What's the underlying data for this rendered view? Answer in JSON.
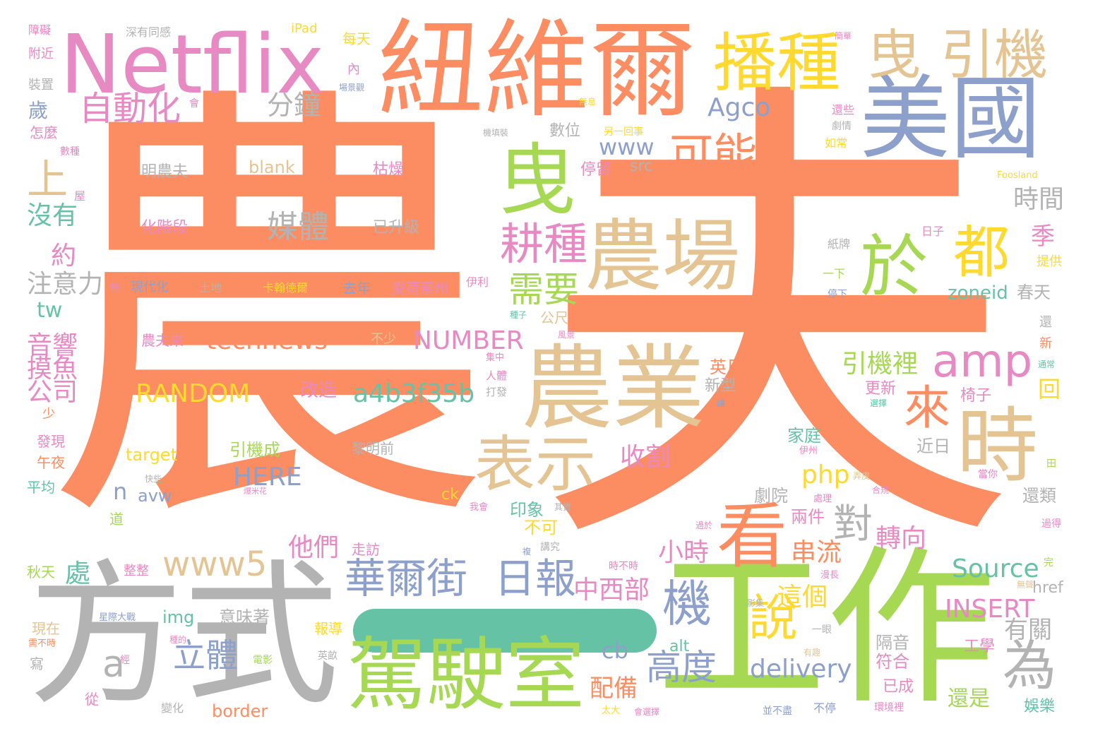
{
  "palette": {
    "orange": "#fc8d62",
    "green": "#a6d854",
    "gray": "#b3b3b3",
    "tan": "#e5c494",
    "blue": "#8da0cb",
    "pink": "#e78ac3",
    "yellow": "#ffd92f",
    "teal": "#66c2a5"
  },
  "words": [
    {
      "text": "農",
      "color": "orange"
    },
    {
      "text": "夫",
      "color": "orange"
    },
    {
      "text": "方式",
      "color": "gray"
    },
    {
      "text": "工作",
      "color": "green"
    },
    {
      "text": "紐維爾",
      "color": "orange"
    },
    {
      "text": "Netflix",
      "color": "pink"
    },
    {
      "text": "一",
      "color": "teal"
    },
    {
      "text": "駕駛室",
      "color": "green"
    },
    {
      "text": "農業",
      "color": "tan"
    },
    {
      "text": "農場",
      "color": "tan"
    },
    {
      "text": "美國",
      "color": "blue"
    },
    {
      "text": "時",
      "color": "tan"
    },
    {
      "text": "播種",
      "color": "yellow"
    },
    {
      "text": "曳",
      "color": "tan"
    },
    {
      "text": "引機",
      "color": "tan"
    },
    {
      "text": "曳",
      "color": "green"
    },
    {
      "text": "於",
      "color": "green"
    },
    {
      "text": "都",
      "color": "yellow"
    },
    {
      "text": "表示",
      "color": "tan"
    },
    {
      "text": "看",
      "color": "orange"
    },
    {
      "text": "華爾街",
      "color": "blue"
    },
    {
      "text": "日報",
      "color": "blue"
    },
    {
      "text": "耕種",
      "color": "pink"
    },
    {
      "text": "說",
      "color": "yellow"
    },
    {
      "text": "機",
      "color": "blue"
    },
    {
      "text": "為",
      "color": "gray"
    },
    {
      "text": "來",
      "color": "orange"
    },
    {
      "text": "amp",
      "color": "pink"
    },
    {
      "text": "可能",
      "color": "orange"
    },
    {
      "text": "自動化",
      "color": "pink"
    },
    {
      "text": "上",
      "color": "tan"
    },
    {
      "text": "需要",
      "color": "green"
    },
    {
      "text": "www5",
      "color": "tan"
    },
    {
      "text": "高度",
      "color": "blue"
    },
    {
      "text": "對",
      "color": "gray"
    },
    {
      "text": "立體",
      "color": "blue"
    },
    {
      "text": "a",
      "color": "gray"
    },
    {
      "text": "媒體",
      "color": "gray"
    },
    {
      "text": "technews",
      "color": "orange"
    },
    {
      "text": "a4b3f35b",
      "color": "teal"
    },
    {
      "text": "RANDOM",
      "color": "yellow"
    },
    {
      "text": "NUMBER",
      "color": "pink"
    },
    {
      "text": "Agco",
      "color": "blue"
    },
    {
      "text": "Source",
      "color": "teal"
    },
    {
      "text": "INSERT",
      "color": "pink"
    },
    {
      "text": "delivery",
      "color": "blue"
    },
    {
      "text": "HERE",
      "color": "blue"
    },
    {
      "text": "php",
      "color": "yellow"
    },
    {
      "text": "中西部",
      "color": "pink"
    },
    {
      "text": "收割",
      "color": "pink"
    },
    {
      "text": "小時",
      "color": "pink"
    },
    {
      "text": "他們",
      "color": "pink"
    },
    {
      "text": "串流",
      "color": "orange"
    },
    {
      "text": "這個",
      "color": "yellow"
    },
    {
      "text": "轉向",
      "color": "pink"
    },
    {
      "text": "引機裡",
      "color": "green"
    },
    {
      "text": "還是",
      "color": "green"
    },
    {
      "text": "有關",
      "color": "gray"
    },
    {
      "text": "時間",
      "color": "gray"
    },
    {
      "text": "分鐘",
      "color": "gray"
    },
    {
      "text": "沒有",
      "color": "teal"
    },
    {
      "text": "注意力",
      "color": "gray"
    },
    {
      "text": "音響",
      "color": "pink"
    },
    {
      "text": "摸魚",
      "color": "pink"
    },
    {
      "text": "公司",
      "color": "pink"
    },
    {
      "text": "歲",
      "color": "blue"
    },
    {
      "text": "約",
      "color": "pink"
    },
    {
      "text": "tw",
      "color": "teal"
    },
    {
      "text": "www",
      "color": "blue"
    },
    {
      "text": "配備",
      "color": "orange"
    },
    {
      "text": "cb",
      "color": "blue"
    },
    {
      "text": "處",
      "color": "teal"
    },
    {
      "text": "n",
      "color": "blue"
    },
    {
      "text": "季",
      "color": "pink"
    },
    {
      "text": "回",
      "color": "yellow"
    },
    {
      "text": "zoneid",
      "color": "teal"
    },
    {
      "text": "春天",
      "color": "gray"
    },
    {
      "text": "椅子",
      "color": "pink"
    },
    {
      "text": "隔音",
      "color": "gray"
    },
    {
      "text": "符合",
      "color": "pink"
    },
    {
      "text": "娛樂",
      "color": "teal"
    },
    {
      "text": "還類",
      "color": "gray"
    },
    {
      "text": "兩件",
      "color": "pink"
    },
    {
      "text": "劇院",
      "color": "gray"
    },
    {
      "text": "近日",
      "color": "gray"
    },
    {
      "text": "家庭",
      "color": "teal"
    },
    {
      "text": "英尺",
      "color": "orange"
    },
    {
      "text": "新型",
      "color": "gray"
    },
    {
      "text": "改造",
      "color": "pink"
    },
    {
      "text": "印象",
      "color": "teal"
    },
    {
      "text": "不可",
      "color": "yellow"
    },
    {
      "text": "工學",
      "color": "pink"
    },
    {
      "text": "已成",
      "color": "pink"
    },
    {
      "text": "更新",
      "color": "pink"
    },
    {
      "text": "引機成",
      "color": "green"
    },
    {
      "text": "target",
      "color": "yellow"
    },
    {
      "text": "avw",
      "color": "blue"
    },
    {
      "text": "img",
      "color": "teal"
    },
    {
      "text": "意味著",
      "color": "gray"
    },
    {
      "text": "border",
      "color": "orange"
    },
    {
      "text": "alt",
      "color": "teal"
    },
    {
      "text": "href",
      "color": "gray"
    },
    {
      "text": "ck",
      "color": "yellow"
    },
    {
      "text": "src",
      "color": "gray"
    },
    {
      "text": "blank",
      "color": "tan"
    },
    {
      "text": "明農夫",
      "color": "gray"
    },
    {
      "text": "枯燥",
      "color": "pink"
    },
    {
      "text": "事",
      "color": "orange"
    },
    {
      "text": "化階段",
      "color": "pink"
    },
    {
      "text": "已升級",
      "color": "gray"
    },
    {
      "text": "停留",
      "color": "pink"
    },
    {
      "text": "數位",
      "color": "gray"
    },
    {
      "text": "去年",
      "color": "blue"
    },
    {
      "text": "愛荷華州",
      "color": "pink"
    },
    {
      "text": "卡翰德爾",
      "color": "yellow"
    },
    {
      "text": "農夫來",
      "color": "pink"
    },
    {
      "text": "不少",
      "color": "tan"
    },
    {
      "text": "公尺",
      "color": "tan"
    },
    {
      "text": "走訪",
      "color": "pink"
    },
    {
      "text": "整整",
      "color": "pink"
    },
    {
      "text": "報導",
      "color": "yellow"
    },
    {
      "text": "黎明前",
      "color": "gray"
    },
    {
      "text": "怎麼",
      "color": "pink"
    },
    {
      "text": "障礙",
      "color": "pink"
    },
    {
      "text": "深有同感",
      "color": "gray"
    },
    {
      "text": "iPad",
      "color": "yellow"
    },
    {
      "text": "每天",
      "color": "yellow"
    },
    {
      "text": "內",
      "color": "pink"
    },
    {
      "text": "附近",
      "color": "pink"
    },
    {
      "text": "裝置",
      "color": "gray"
    },
    {
      "text": "現代化",
      "color": "blue"
    },
    {
      "text": "土地",
      "color": "gray"
    },
    {
      "text": "無",
      "color": "pink"
    },
    {
      "text": "伊利",
      "color": "pink"
    },
    {
      "text": "秋天",
      "color": "green"
    },
    {
      "text": "現在",
      "color": "tan"
    },
    {
      "text": "寫",
      "color": "gray"
    },
    {
      "text": "從",
      "color": "pink"
    },
    {
      "text": "平均",
      "color": "teal"
    },
    {
      "text": "午夜",
      "color": "orange"
    },
    {
      "text": "發現",
      "color": "pink"
    },
    {
      "text": "少",
      "color": "orange"
    },
    {
      "text": "道",
      "color": "green"
    },
    {
      "text": "提供",
      "color": "yellow"
    },
    {
      "text": "新",
      "color": "orange"
    },
    {
      "text": "還",
      "color": "gray"
    },
    {
      "text": "日子",
      "color": "pink"
    },
    {
      "text": "紙牌",
      "color": "gray"
    },
    {
      "text": "一下",
      "color": "green"
    },
    {
      "text": "停下",
      "color": "blue"
    },
    {
      "text": "劇情",
      "color": "gray"
    },
    {
      "text": "還些",
      "color": "pink"
    },
    {
      "text": "如常",
      "color": "yellow"
    },
    {
      "text": "屋",
      "color": "pink"
    },
    {
      "text": "數種",
      "color": "pink"
    },
    {
      "text": "另一回事",
      "color": "yellow"
    },
    {
      "text": "機填裝",
      "color": "gray"
    },
    {
      "text": "無息",
      "color": "yellow"
    },
    {
      "text": "會",
      "color": "pink"
    },
    {
      "text": "Foosland",
      "color": "yellow"
    },
    {
      "text": "田",
      "color": "green"
    },
    {
      "text": "當你",
      "color": "pink"
    },
    {
      "text": "過得",
      "color": "pink"
    },
    {
      "text": "完",
      "color": "green"
    },
    {
      "text": "無聲",
      "color": "tan"
    },
    {
      "text": "不停",
      "color": "blue"
    },
    {
      "text": "環境裡",
      "color": "pink"
    },
    {
      "text": "並不盡",
      "color": "blue"
    },
    {
      "text": "太大",
      "color": "yellow"
    },
    {
      "text": "會選擇",
      "color": "pink"
    },
    {
      "text": "變化",
      "color": "gray"
    },
    {
      "text": "電影",
      "color": "green"
    },
    {
      "text": "英畝",
      "color": "gray"
    },
    {
      "text": "講究",
      "color": "gray"
    },
    {
      "text": "複",
      "color": "blue"
    },
    {
      "text": "時不時",
      "color": "pink"
    },
    {
      "text": "漫長",
      "color": "pink"
    },
    {
      "text": "影集",
      "color": "gray"
    },
    {
      "text": "一眼",
      "color": "gray"
    },
    {
      "text": "有趣",
      "color": "tan"
    },
    {
      "text": "星際大戰",
      "color": "blue"
    },
    {
      "text": "需不時",
      "color": "orange"
    },
    {
      "text": "種的",
      "color": "pink"
    },
    {
      "text": "過於",
      "color": "pink"
    },
    {
      "text": "合規",
      "color": "pink"
    },
    {
      "text": "弄皮",
      "color": "tan"
    },
    {
      "text": "處理",
      "color": "pink"
    },
    {
      "text": "其實",
      "color": "gray"
    },
    {
      "text": "我會",
      "color": "pink"
    },
    {
      "text": "快些",
      "color": "gray"
    },
    {
      "text": "爆米花",
      "color": "pink"
    },
    {
      "text": "人體",
      "color": "pink"
    },
    {
      "text": "打發",
      "color": "gray"
    },
    {
      "text": "集中",
      "color": "pink"
    },
    {
      "text": "風景",
      "color": "pink"
    },
    {
      "text": "種子",
      "color": "teal"
    },
    {
      "text": "場景觀",
      "color": "blue"
    },
    {
      "text": "選擇",
      "color": "teal"
    },
    {
      "text": "通常",
      "color": "teal"
    },
    {
      "text": "伊州",
      "color": "pink"
    },
    {
      "text": "簡單",
      "color": "pink"
    },
    {
      "text": "讓",
      "color": "blue"
    },
    {
      "text": "經",
      "color": "pink"
    }
  ]
}
